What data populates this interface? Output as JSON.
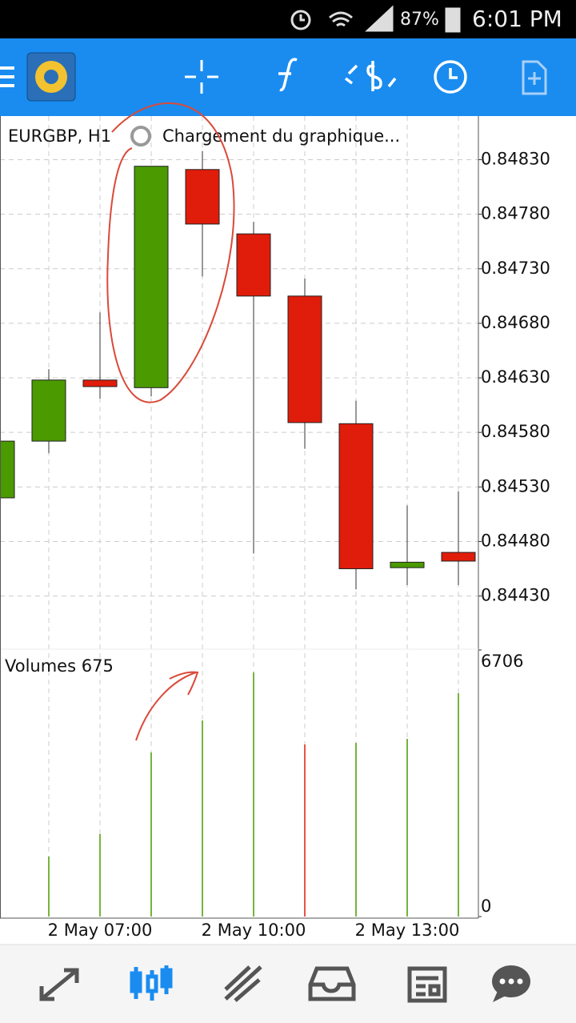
{
  "status_bar": {
    "battery": "87%",
    "time": "6:01 PM"
  },
  "chart_data": {
    "type": "candlestick",
    "title": "EURGBP, H1",
    "status": "Chargement du graphique...",
    "categories": [
      null,
      null,
      "2 May 07:00",
      null,
      null,
      "2 May 10:00",
      null,
      null,
      "2 May 13:00",
      null
    ],
    "open": [
      0.8452,
      0.84572,
      0.84628,
      0.84621,
      0.84821,
      0.84762,
      0.84705,
      0.84588,
      0.84456,
      0.8447
    ],
    "high": [
      0.84572,
      0.84638,
      0.8469,
      0.84824,
      0.84838,
      0.84773,
      0.84721,
      0.84609,
      0.84513,
      0.84526
    ],
    "low": [
      0.8452,
      0.84561,
      0.84611,
      0.84613,
      0.84723,
      0.84469,
      0.84565,
      0.84436,
      0.8444,
      0.8444
    ],
    "close": [
      0.84572,
      0.84628,
      0.84622,
      0.84824,
      0.84771,
      0.84705,
      0.84589,
      0.84455,
      0.84461,
      0.84462
    ],
    "up_color": "#4a9a00",
    "down_color": "#e01c0a",
    "ylim": [
      0.84382,
      0.8487
    ],
    "yticks": [
      {
        "value": 0.8483,
        "label": "0.84830"
      },
      {
        "value": 0.8478,
        "label": "0.84780"
      },
      {
        "value": 0.8473,
        "label": "0.84730"
      },
      {
        "value": 0.8468,
        "label": "0.84680"
      },
      {
        "value": 0.8463,
        "label": "0.84630"
      },
      {
        "value": 0.8458,
        "label": "0.84580"
      },
      {
        "value": 0.8453,
        "label": "0.84530"
      },
      {
        "value": 0.8448,
        "label": "0.84480"
      },
      {
        "value": 0.8443,
        "label": "0.84430"
      }
    ],
    "grid": true,
    "volume": {
      "title": "Volumes 675",
      "values": [
        null,
        1510,
        2074,
        4128,
        4934,
        6142,
        4330,
        4370,
        4471,
        5619
      ],
      "colors": [
        "#4a9a00",
        "#4a9a00",
        "#4a9a00",
        "#4a9a00",
        "#4a9a00",
        "#4a9a00",
        "#e01c0a",
        "#4a9a00",
        "#4a9a00",
        "#4a9a00"
      ],
      "ylim": [
        0,
        6706
      ],
      "yticks": [
        6706,
        0
      ]
    }
  }
}
